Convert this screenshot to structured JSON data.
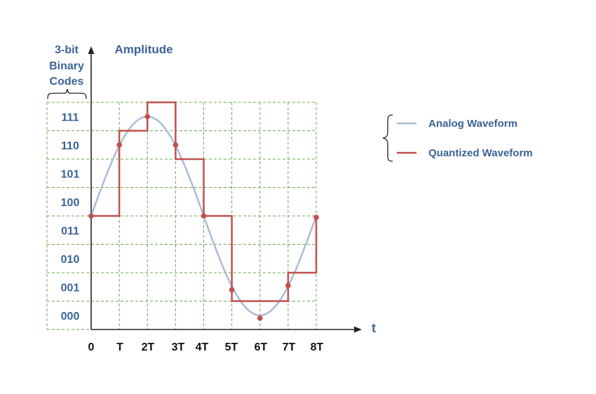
{
  "title_codes": [
    "3-bit",
    "Binary",
    "Codes"
  ],
  "y_axis_label": "Amplitude",
  "x_axis_label": "t",
  "colors": {
    "text": "#3b6497",
    "analog": "#a9bcd6",
    "quantized": "#c0504d",
    "grid": "#6aa84f",
    "axis": "#222222"
  },
  "chart_data": {
    "type": "line",
    "x_ticks": [
      "0",
      "T",
      "2T",
      "3T",
      "4T",
      "5T",
      "6T",
      "7T",
      "8T"
    ],
    "codes": [
      "000",
      "001",
      "010",
      "011",
      "100",
      "101",
      "110",
      "111"
    ],
    "ylim": [
      0,
      8
    ],
    "xlim": [
      0,
      8
    ],
    "grid": true,
    "legend_placement": "right",
    "series": [
      {
        "name": "Analog Waveform",
        "kind": "sine",
        "offset": 4,
        "amplitude": 3.5,
        "period": 8,
        "samples": [
          [
            0,
            4
          ],
          [
            1,
            6.5
          ],
          [
            2,
            7.5
          ],
          [
            3,
            6.5
          ],
          [
            4,
            4
          ],
          [
            5,
            1.4
          ],
          [
            6,
            0.4
          ],
          [
            7,
            1.55
          ],
          [
            8,
            3.95
          ]
        ]
      },
      {
        "name": "Quantized Waveform",
        "kind": "step",
        "steps": [
          [
            0,
            1,
            4
          ],
          [
            1,
            2,
            7
          ],
          [
            2,
            3,
            8
          ],
          [
            3,
            4,
            6
          ],
          [
            4,
            5,
            4
          ],
          [
            5,
            7,
            1
          ],
          [
            7,
            8,
            2
          ]
        ],
        "end": 3.95
      }
    ]
  }
}
